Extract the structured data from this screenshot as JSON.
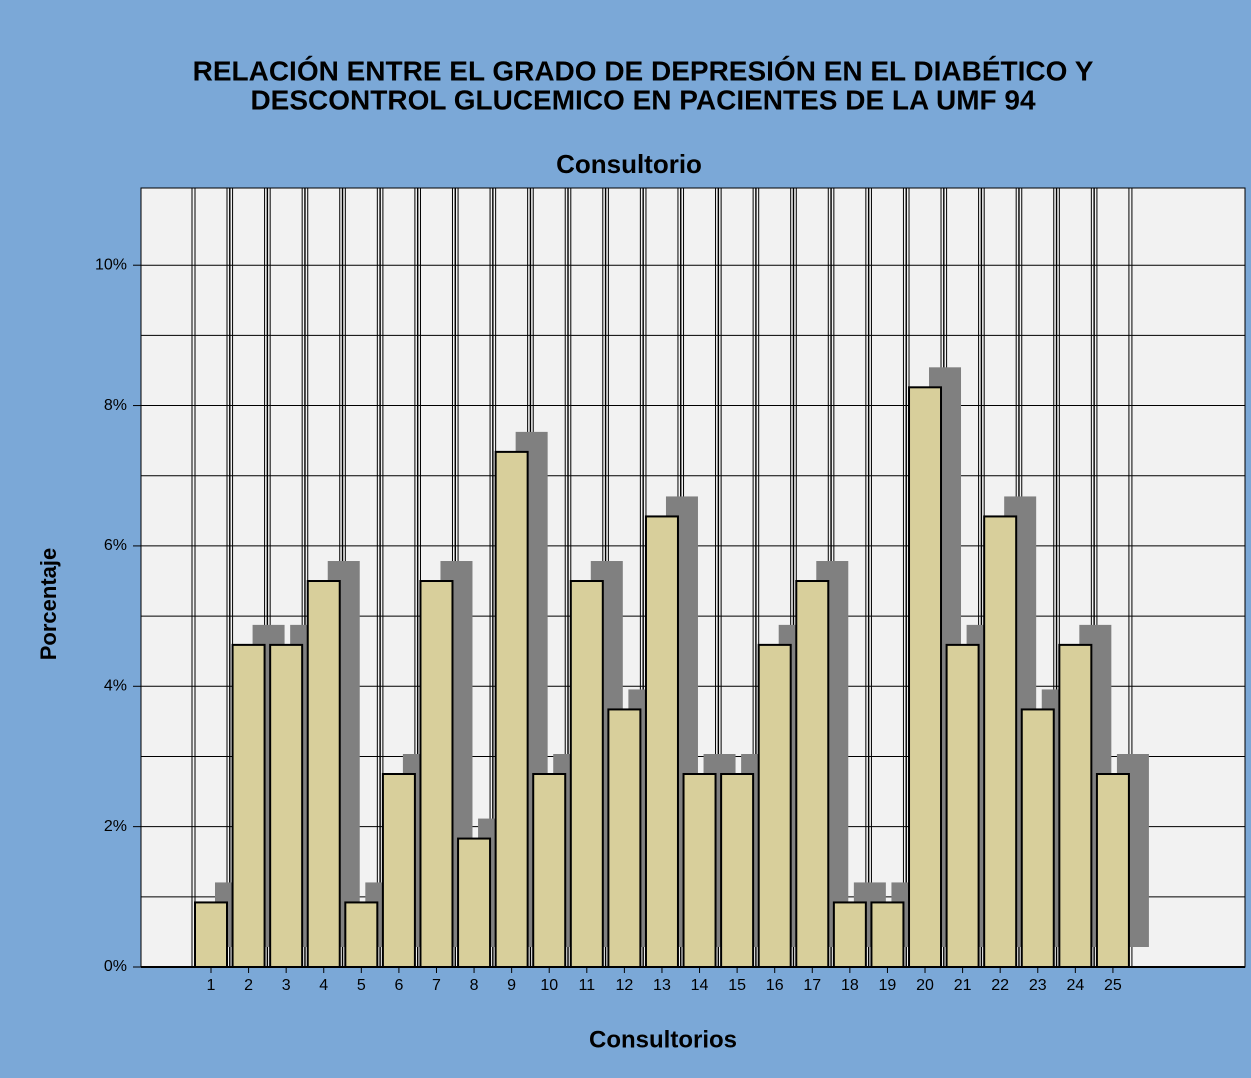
{
  "chart_data": {
    "type": "bar",
    "title": [
      "RELACIÓN ENTRE EL GRADO DE  DEPRESIÓN EN EL DIABÉTICO Y",
      "DESCONTROL GLUCEMICO EN PACIENTES DE LA UMF  94"
    ],
    "subtitle": "Consultorio",
    "x_label": "Consultorios",
    "y_label": "Porcentaje",
    "categories": [
      "1",
      "2",
      "3",
      "4",
      "5",
      "6",
      "7",
      "8",
      "9",
      "10",
      "11",
      "12",
      "13",
      "14",
      "15",
      "16",
      "17",
      "18",
      "19",
      "20",
      "21",
      "22",
      "23",
      "24",
      "25"
    ],
    "values": [
      0.92,
      4.59,
      4.59,
      5.5,
      0.92,
      2.75,
      5.5,
      1.83,
      7.34,
      2.75,
      5.5,
      3.67,
      6.42,
      2.75,
      2.75,
      4.59,
      5.5,
      0.92,
      0.92,
      8.26,
      4.59,
      6.42,
      3.67,
      4.59,
      2.75
    ],
    "color": "#d8cf9b",
    "shadow_color": "#808080",
    "ylim": [
      0,
      11.1
    ],
    "yticks": [
      {
        "value": 0,
        "label": "0%"
      },
      {
        "value": 2,
        "label": "2%"
      },
      {
        "value": 4,
        "label": "4%"
      },
      {
        "value": 6,
        "label": "6%"
      },
      {
        "value": 8,
        "label": "8%"
      },
      {
        "value": 10,
        "label": "10%"
      }
    ],
    "minor_yticks": [
      1,
      3,
      5,
      7,
      9
    ],
    "grid": true
  }
}
